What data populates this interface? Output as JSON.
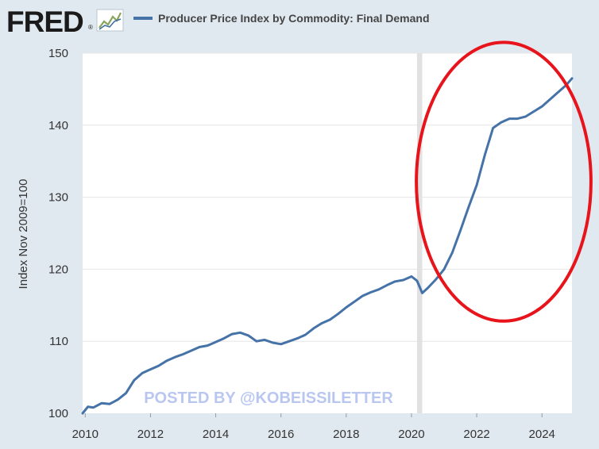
{
  "header": {
    "logo_text": "FRED",
    "logo_mark": "®",
    "legend_label": "Producer Price Index by Commodity: Final Demand"
  },
  "watermark": "POSTED BY @KOBEISSILETTER",
  "colors": {
    "background": "#e1e9f0",
    "plot_bg": "#ffffff",
    "line": "#4572a7",
    "recession": "#e1e1e1",
    "annotation": "#e8141c",
    "watermark": "#b9c7f0",
    "grid": "#e6e6e6"
  },
  "chart_data": {
    "type": "line",
    "title": "Producer Price Index by Commodity: Final Demand",
    "xlabel": "",
    "ylabel": "Index Nov 2009=100",
    "xlim": [
      2009.92,
      2024.92
    ],
    "ylim": [
      100,
      150
    ],
    "x_ticks": [
      2010,
      2012,
      2014,
      2016,
      2018,
      2020,
      2022,
      2024
    ],
    "x_tick_labels": [
      "2010",
      "2012",
      "2014",
      "2016",
      "2018",
      "2020",
      "2022",
      "2024"
    ],
    "y_ticks": [
      100,
      110,
      120,
      130,
      140,
      150
    ],
    "y_tick_labels": [
      "100",
      "110",
      "120",
      "130",
      "140",
      "150"
    ],
    "grid": true,
    "recession_band": [
      2020.17,
      2020.33
    ],
    "annotation": {
      "type": "ellipse",
      "x_range": [
        2020.15,
        2025.5
      ],
      "y_range": [
        112.8,
        151.5
      ]
    },
    "series": [
      {
        "name": "Producer Price Index by Commodity: Final Demand",
        "points": [
          [
            2009.92,
            100.0
          ],
          [
            2010.08,
            100.9
          ],
          [
            2010.25,
            100.8
          ],
          [
            2010.5,
            101.4
          ],
          [
            2010.75,
            101.3
          ],
          [
            2011.0,
            101.9
          ],
          [
            2011.25,
            102.8
          ],
          [
            2011.5,
            104.6
          ],
          [
            2011.75,
            105.6
          ],
          [
            2012.0,
            106.1
          ],
          [
            2012.25,
            106.6
          ],
          [
            2012.5,
            107.3
          ],
          [
            2012.75,
            107.8
          ],
          [
            2013.0,
            108.2
          ],
          [
            2013.25,
            108.7
          ],
          [
            2013.5,
            109.2
          ],
          [
            2013.75,
            109.4
          ],
          [
            2014.0,
            109.9
          ],
          [
            2014.25,
            110.4
          ],
          [
            2014.5,
            111.0
          ],
          [
            2014.75,
            111.2
          ],
          [
            2015.0,
            110.8
          ],
          [
            2015.25,
            110.0
          ],
          [
            2015.5,
            110.2
          ],
          [
            2015.75,
            109.8
          ],
          [
            2016.0,
            109.6
          ],
          [
            2016.25,
            110.0
          ],
          [
            2016.5,
            110.4
          ],
          [
            2016.75,
            110.9
          ],
          [
            2017.0,
            111.8
          ],
          [
            2017.25,
            112.5
          ],
          [
            2017.5,
            113.0
          ],
          [
            2017.75,
            113.8
          ],
          [
            2018.0,
            114.7
          ],
          [
            2018.25,
            115.5
          ],
          [
            2018.5,
            116.3
          ],
          [
            2018.75,
            116.8
          ],
          [
            2019.0,
            117.2
          ],
          [
            2019.25,
            117.8
          ],
          [
            2019.5,
            118.3
          ],
          [
            2019.75,
            118.5
          ],
          [
            2020.0,
            119.0
          ],
          [
            2020.17,
            118.4
          ],
          [
            2020.33,
            116.7
          ],
          [
            2020.5,
            117.4
          ],
          [
            2020.75,
            118.6
          ],
          [
            2021.0,
            120.0
          ],
          [
            2021.25,
            122.3
          ],
          [
            2021.5,
            125.4
          ],
          [
            2021.75,
            128.6
          ],
          [
            2022.0,
            131.7
          ],
          [
            2022.25,
            135.9
          ],
          [
            2022.5,
            139.6
          ],
          [
            2022.75,
            140.4
          ],
          [
            2023.0,
            140.9
          ],
          [
            2023.25,
            140.9
          ],
          [
            2023.5,
            141.2
          ],
          [
            2023.75,
            141.9
          ],
          [
            2024.0,
            142.6
          ],
          [
            2024.25,
            143.6
          ],
          [
            2024.5,
            144.6
          ],
          [
            2024.75,
            145.6
          ],
          [
            2024.92,
            146.5
          ]
        ]
      }
    ]
  }
}
